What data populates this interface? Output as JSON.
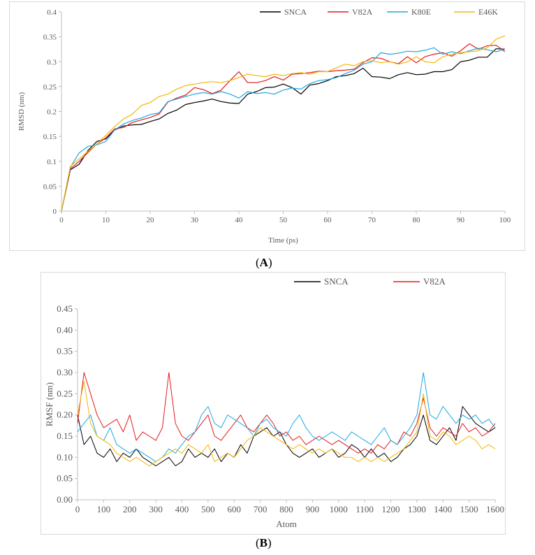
{
  "colors": {
    "SNCA": "#000000",
    "V82A": "#e31a1c",
    "K80E": "#1fa9e1",
    "E46K": "#f2b705",
    "axis": "#bfbfbf",
    "tick_text": "#595959"
  },
  "labels": {
    "panel_a_open": "(",
    "panel_a_letter": "A",
    "panel_a_close": ")",
    "panel_b_open": "(",
    "panel_b_letter": "B",
    "panel_b_close": ")"
  },
  "chart_data": [
    {
      "type": "line",
      "title": "",
      "xlabel": "Time (ps)",
      "ylabel": "RMSD (nm)",
      "xlim": [
        0,
        100
      ],
      "ylim": [
        0,
        0.4
      ],
      "xticks": [
        0,
        10,
        20,
        30,
        40,
        50,
        60,
        70,
        80,
        90,
        100
      ],
      "yticks": [
        0,
        0.05,
        0.1,
        0.15,
        0.2,
        0.25,
        0.3,
        0.35,
        0.4
      ],
      "ytick_labels": [
        "0",
        "0.05",
        "0.1",
        "0.15",
        "0.2",
        "0.25",
        "0.3",
        "0.35",
        "0.4"
      ],
      "legend_position": "top-right",
      "x": [
        0,
        2,
        4,
        6,
        8,
        10,
        12,
        14,
        16,
        18,
        20,
        22,
        24,
        26,
        28,
        30,
        32,
        34,
        36,
        38,
        40,
        42,
        44,
        46,
        48,
        50,
        52,
        54,
        56,
        58,
        60,
        62,
        64,
        66,
        68,
        70,
        72,
        74,
        76,
        78,
        80,
        82,
        84,
        86,
        88,
        90,
        92,
        94,
        96,
        98,
        100
      ],
      "series": [
        {
          "name": "SNCA",
          "values": [
            0,
            0.083,
            0.094,
            0.122,
            0.14,
            0.145,
            0.163,
            0.171,
            0.173,
            0.174,
            0.18,
            0.185,
            0.196,
            0.203,
            0.214,
            0.218,
            0.221,
            0.225,
            0.22,
            0.217,
            0.216,
            0.235,
            0.24,
            0.248,
            0.249,
            0.255,
            0.248,
            0.235,
            0.253,
            0.256,
            0.262,
            0.27,
            0.272,
            0.276,
            0.287,
            0.27,
            0.269,
            0.266,
            0.274,
            0.278,
            0.274,
            0.275,
            0.28,
            0.28,
            0.284,
            0.3,
            0.303,
            0.309,
            0.309,
            0.326,
            0.325
          ]
        },
        {
          "name": "V82A",
          "values": [
            0,
            0.085,
            0.1,
            0.118,
            0.135,
            0.147,
            0.165,
            0.168,
            0.178,
            0.183,
            0.188,
            0.195,
            0.219,
            0.227,
            0.233,
            0.248,
            0.244,
            0.236,
            0.243,
            0.262,
            0.28,
            0.258,
            0.258,
            0.262,
            0.27,
            0.263,
            0.275,
            0.276,
            0.278,
            0.281,
            0.28,
            0.282,
            0.283,
            0.285,
            0.298,
            0.308,
            0.307,
            0.3,
            0.296,
            0.31,
            0.298,
            0.31,
            0.315,
            0.318,
            0.311,
            0.322,
            0.336,
            0.325,
            0.332,
            0.333,
            0.32
          ]
        },
        {
          "name": "K80E",
          "values": [
            0,
            0.088,
            0.117,
            0.13,
            0.133,
            0.14,
            0.163,
            0.175,
            0.182,
            0.187,
            0.194,
            0.197,
            0.22,
            0.225,
            0.23,
            0.235,
            0.238,
            0.235,
            0.24,
            0.235,
            0.227,
            0.24,
            0.236,
            0.238,
            0.235,
            0.243,
            0.247,
            0.245,
            0.256,
            0.262,
            0.264,
            0.268,
            0.276,
            0.283,
            0.295,
            0.3,
            0.318,
            0.315,
            0.317,
            0.321,
            0.32,
            0.323,
            0.328,
            0.315,
            0.32,
            0.316,
            0.322,
            0.327,
            0.324,
            0.32,
            0.325
          ]
        },
        {
          "name": "E46K",
          "values": [
            0,
            0.09,
            0.105,
            0.12,
            0.135,
            0.152,
            0.17,
            0.185,
            0.195,
            0.212,
            0.218,
            0.23,
            0.235,
            0.245,
            0.252,
            0.255,
            0.258,
            0.26,
            0.258,
            0.262,
            0.268,
            0.275,
            0.272,
            0.27,
            0.275,
            0.272,
            0.276,
            0.278,
            0.275,
            0.28,
            0.28,
            0.288,
            0.295,
            0.292,
            0.3,
            0.302,
            0.298,
            0.3,
            0.295,
            0.3,
            0.31,
            0.3,
            0.298,
            0.31,
            0.315,
            0.318,
            0.32,
            0.322,
            0.328,
            0.345,
            0.352
          ]
        }
      ]
    },
    {
      "type": "line",
      "title": "",
      "xlabel": "Atom",
      "ylabel": "RMSF (nm)",
      "xlim": [
        0,
        1600
      ],
      "ylim": [
        0,
        0.45
      ],
      "xticks": [
        0,
        100,
        200,
        300,
        400,
        500,
        600,
        700,
        800,
        900,
        1000,
        1100,
        1200,
        1300,
        1400,
        1500,
        1600
      ],
      "yticks": [
        0,
        0.05,
        0.1,
        0.15,
        0.2,
        0.25,
        0.3,
        0.35,
        0.4,
        0.45
      ],
      "ytick_labels": [
        "0.00",
        "0.05",
        "0.10",
        "0.15",
        "0.20",
        "0.25",
        "0.30",
        "0.35",
        "0.40",
        "0.45"
      ],
      "legend_position": "top-right",
      "x": [
        0,
        25,
        50,
        75,
        100,
        125,
        150,
        175,
        200,
        225,
        250,
        275,
        300,
        325,
        350,
        375,
        400,
        425,
        450,
        475,
        500,
        525,
        550,
        575,
        600,
        625,
        650,
        675,
        700,
        725,
        750,
        775,
        800,
        825,
        850,
        875,
        900,
        925,
        950,
        975,
        1000,
        1025,
        1050,
        1075,
        1100,
        1125,
        1150,
        1175,
        1200,
        1225,
        1250,
        1275,
        1300,
        1325,
        1350,
        1375,
        1400,
        1425,
        1450,
        1475,
        1500,
        1525,
        1550,
        1575,
        1600
      ],
      "series": [
        {
          "name": "SNCA",
          "values": [
            0.2,
            0.13,
            0.15,
            0.11,
            0.1,
            0.12,
            0.09,
            0.11,
            0.1,
            0.12,
            0.1,
            0.09,
            0.08,
            0.09,
            0.1,
            0.08,
            0.09,
            0.12,
            0.1,
            0.11,
            0.1,
            0.12,
            0.09,
            0.11,
            0.1,
            0.13,
            0.11,
            0.15,
            0.16,
            0.17,
            0.15,
            0.16,
            0.13,
            0.11,
            0.1,
            0.11,
            0.12,
            0.1,
            0.11,
            0.12,
            0.1,
            0.11,
            0.13,
            0.12,
            0.1,
            0.12,
            0.1,
            0.11,
            0.09,
            0.1,
            0.12,
            0.13,
            0.15,
            0.2,
            0.14,
            0.13,
            0.15,
            0.17,
            0.14,
            0.22,
            0.2,
            0.18,
            0.17,
            0.16,
            0.17
          ]
        },
        {
          "name": "V82A",
          "values": [
            0.18,
            0.3,
            0.25,
            0.2,
            0.17,
            0.18,
            0.19,
            0.16,
            0.2,
            0.14,
            0.16,
            0.15,
            0.14,
            0.17,
            0.3,
            0.18,
            0.15,
            0.14,
            0.16,
            0.18,
            0.2,
            0.15,
            0.14,
            0.16,
            0.18,
            0.2,
            0.17,
            0.16,
            0.18,
            0.2,
            0.18,
            0.15,
            0.16,
            0.14,
            0.15,
            0.13,
            0.14,
            0.15,
            0.14,
            0.13,
            0.14,
            0.13,
            0.12,
            0.11,
            0.12,
            0.11,
            0.13,
            0.12,
            0.14,
            0.13,
            0.16,
            0.15,
            0.18,
            0.24,
            0.17,
            0.15,
            0.17,
            0.16,
            0.15,
            0.18,
            0.16,
            0.17,
            0.15,
            0.16,
            0.18
          ]
        },
        {
          "name": "K80E",
          "values": [
            0.16,
            0.18,
            0.2,
            0.15,
            0.14,
            0.17,
            0.13,
            0.12,
            0.11,
            0.12,
            0.11,
            0.1,
            0.09,
            0.1,
            0.12,
            0.11,
            0.13,
            0.15,
            0.16,
            0.2,
            0.22,
            0.18,
            0.17,
            0.2,
            0.19,
            0.18,
            0.17,
            0.15,
            0.18,
            0.19,
            0.17,
            0.16,
            0.15,
            0.18,
            0.2,
            0.17,
            0.15,
            0.14,
            0.15,
            0.16,
            0.15,
            0.14,
            0.16,
            0.15,
            0.14,
            0.13,
            0.15,
            0.17,
            0.14,
            0.13,
            0.15,
            0.17,
            0.2,
            0.3,
            0.2,
            0.19,
            0.22,
            0.2,
            0.18,
            0.2,
            0.19,
            0.2,
            0.18,
            0.19,
            0.17
          ]
        },
        {
          "name": "E46K",
          "values": [
            0.2,
            0.28,
            0.18,
            0.15,
            0.14,
            0.13,
            0.11,
            0.1,
            0.09,
            0.1,
            0.09,
            0.08,
            0.09,
            0.1,
            0.11,
            0.12,
            0.11,
            0.13,
            0.12,
            0.11,
            0.13,
            0.09,
            0.1,
            0.11,
            0.1,
            0.12,
            0.14,
            0.15,
            0.17,
            0.16,
            0.15,
            0.14,
            0.13,
            0.12,
            0.13,
            0.12,
            0.11,
            0.12,
            0.11,
            0.12,
            0.11,
            0.1,
            0.1,
            0.09,
            0.1,
            0.09,
            0.1,
            0.09,
            0.1,
            0.11,
            0.12,
            0.14,
            0.16,
            0.25,
            0.15,
            0.14,
            0.16,
            0.15,
            0.13,
            0.14,
            0.15,
            0.14,
            0.12,
            0.13,
            0.12
          ]
        }
      ]
    }
  ]
}
